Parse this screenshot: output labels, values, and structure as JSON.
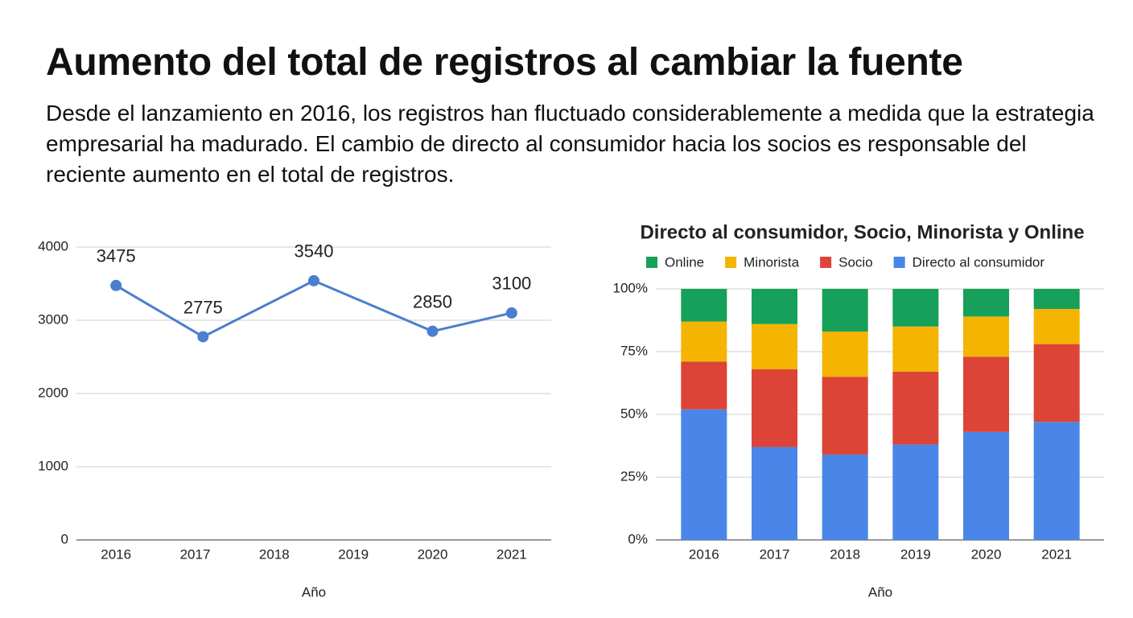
{
  "title": "Aumento del total de registros al cambiar la fuente",
  "subtitle": "Desde el lanzamiento en 2016, los registros han fluctuado considerablemente a medida que la estrategia empresarial ha madurado. El cambio de directo al consumidor hacia los socios es responsable del reciente aumento en el total de registros.",
  "chart_data": [
    {
      "type": "line",
      "x_label": "Año",
      "x": [
        2016,
        2017.1,
        2018.5,
        2020,
        2021
      ],
      "values": [
        3475,
        2775,
        3540,
        2850,
        3100
      ],
      "color": "#4a7fd0",
      "xlim": [
        2015.5,
        2021.5
      ],
      "xticks": [
        2016,
        2017,
        2018,
        2019,
        2020,
        2021
      ],
      "ylim": [
        0,
        4000
      ],
      "yticks": [
        0,
        1000,
        2000,
        3000,
        4000
      ],
      "grid": true
    },
    {
      "type": "stacked-bar",
      "title": "Directo al consumidor, Socio, Minorista y Online",
      "x_label": "Año",
      "categories": [
        "2016",
        "2017",
        "2018",
        "2019",
        "2020",
        "2021"
      ],
      "series": [
        {
          "name": "Directo al consumidor",
          "color": "#4a86e8",
          "values": [
            52,
            37,
            34,
            38,
            43,
            47
          ]
        },
        {
          "name": "Socio",
          "color": "#dc4437",
          "values": [
            19,
            31,
            31,
            29,
            30,
            31
          ]
        },
        {
          "name": "Minorista",
          "color": "#f4b400",
          "values": [
            16,
            18,
            18,
            18,
            16,
            14
          ]
        },
        {
          "name": "Online",
          "color": "#16a05a",
          "values": [
            13,
            14,
            17,
            15,
            11,
            8
          ]
        }
      ],
      "ylim": [
        0,
        100
      ],
      "yticks": [
        {
          "value": 0,
          "label": "0%"
        },
        {
          "value": 25,
          "label": "25%"
        },
        {
          "value": 50,
          "label": "50%"
        },
        {
          "value": 75,
          "label": "75%"
        },
        {
          "value": 100,
          "label": "100%"
        }
      ],
      "grid": true,
      "legend": "top"
    }
  ]
}
